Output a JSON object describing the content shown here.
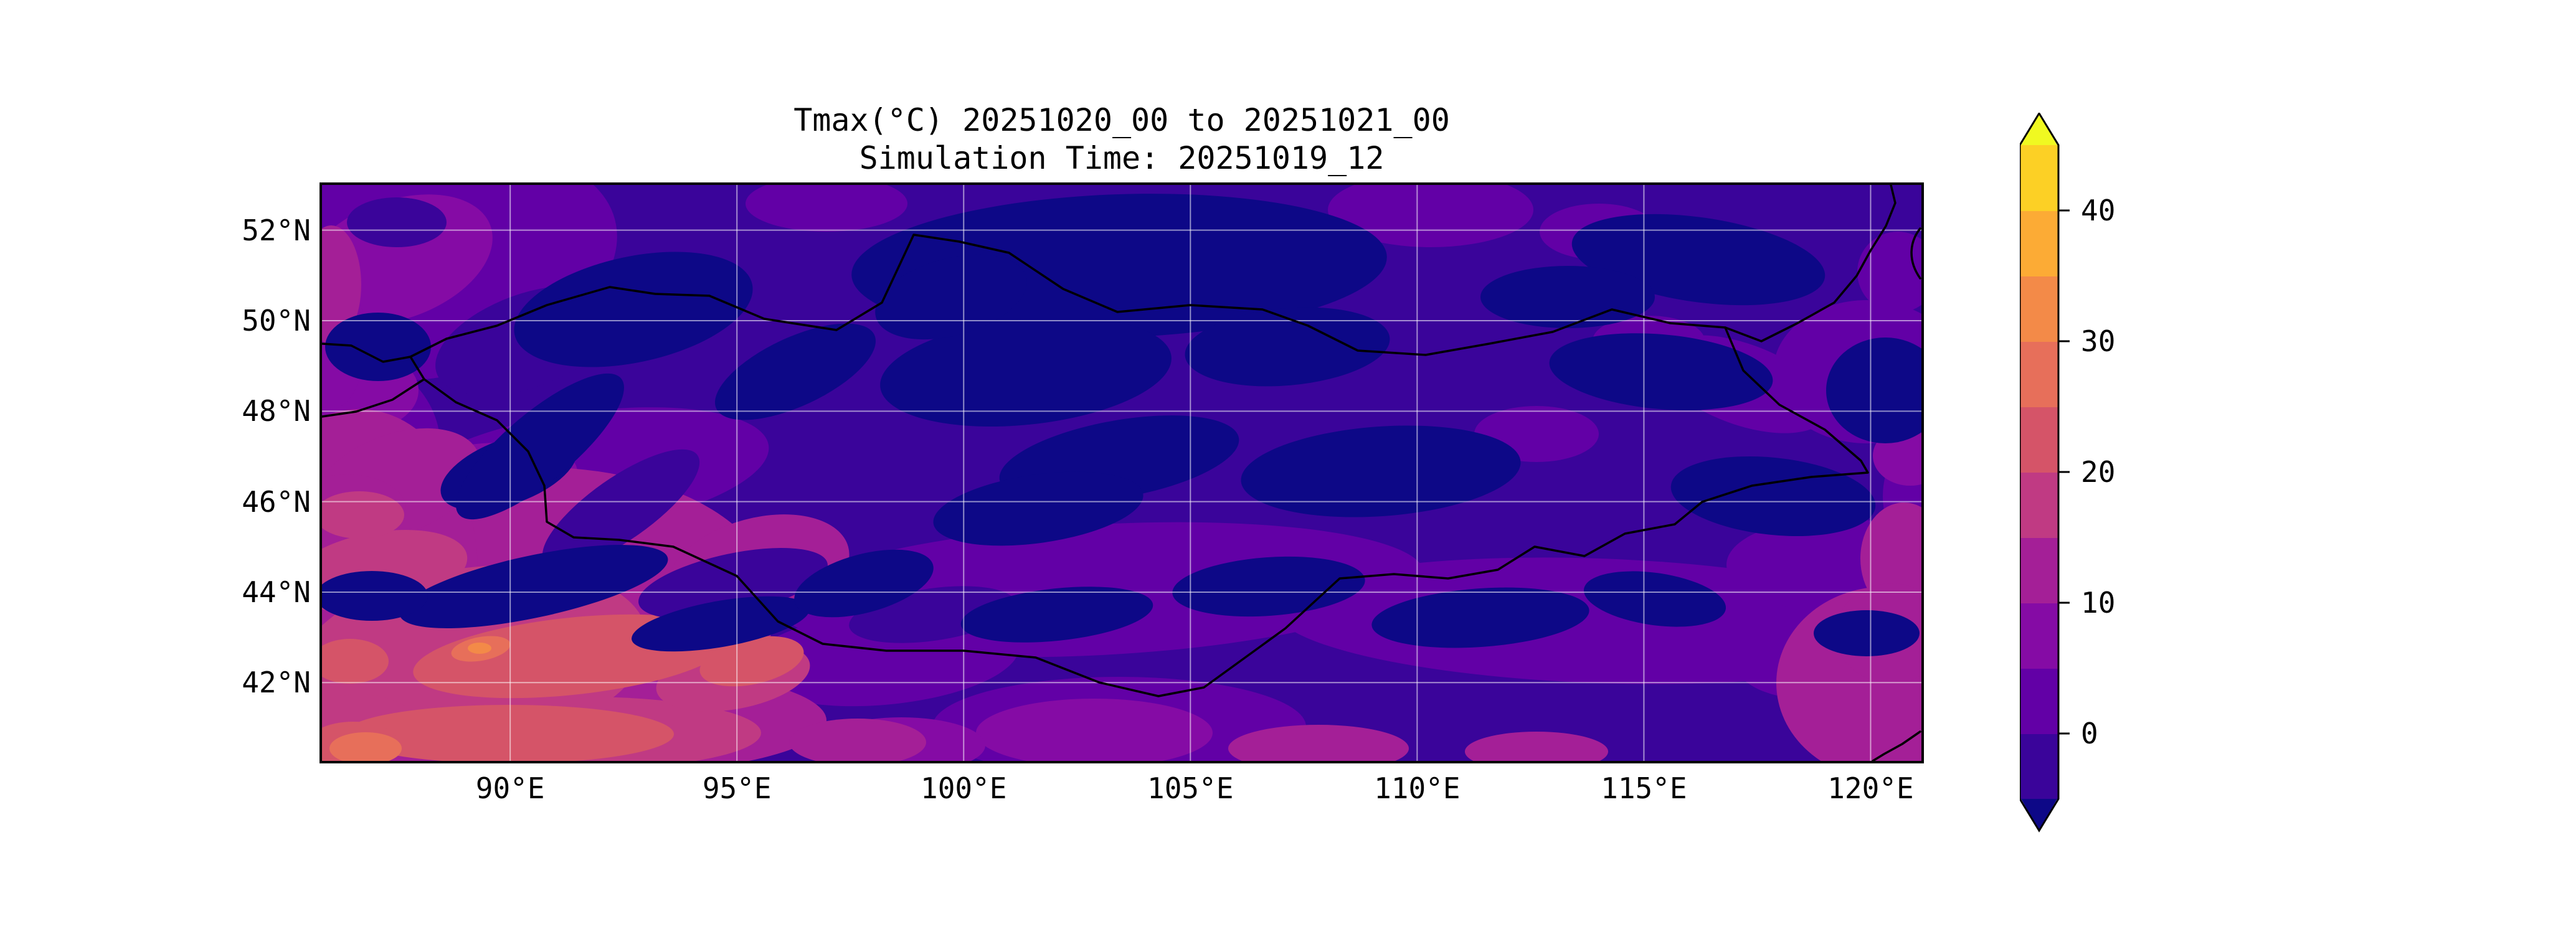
{
  "figure": {
    "background": "#ffffff",
    "frame_color": "#000000"
  },
  "chart_data": {
    "type": "heatmap",
    "subtype": "filled-contour temperature forecast map",
    "title": "Tmax(°C) 20251020_00 to 20251021_00",
    "subtitle": "Simulation Time: 20251019_12",
    "variable": "daily maximum temperature",
    "unit": "°C",
    "xlim": [
      85.85,
      121.12
    ],
    "ylim": [
      40.27,
      53.0
    ],
    "x_ticks": [
      {
        "value": 90,
        "label": "90°E"
      },
      {
        "value": 95,
        "label": "95°E"
      },
      {
        "value": 100,
        "label": "100°E"
      },
      {
        "value": 105,
        "label": "105°E"
      },
      {
        "value": 110,
        "label": "110°E"
      },
      {
        "value": 115,
        "label": "115°E"
      },
      {
        "value": 120,
        "label": "120°E"
      }
    ],
    "y_ticks": [
      {
        "value": 52,
        "label": "52°N"
      },
      {
        "value": 50,
        "label": "50°N"
      },
      {
        "value": 48,
        "label": "48°N"
      },
      {
        "value": 46,
        "label": "46°N"
      },
      {
        "value": 44,
        "label": "44°N"
      },
      {
        "value": 42,
        "label": "42°N"
      }
    ],
    "grid": true,
    "grid_color": "rgba(255,255,255,0.55)",
    "overlays": "black country boundary lines (Mongolia outline, Russia/China/Kazakhstan borders, NE China coastline segment)",
    "colorbar": {
      "orientation": "vertical",
      "position": "right",
      "colormap": "plasma",
      "extend": "both",
      "levels": [
        -5,
        0,
        5,
        10,
        15,
        20,
        25,
        30,
        35,
        40,
        45
      ],
      "bin_colors": [
        "#3a049a",
        "#6200a6",
        "#850ba5",
        "#a41f97",
        "#c03a83",
        "#d55468",
        "#e76f5a",
        "#f38a48",
        "#fcab35",
        "#fcd025"
      ],
      "under_color": "#0d0887",
      "over_color": "#f0f921",
      "tick_values": [
        0,
        10,
        20,
        30,
        40
      ],
      "tick_labels": [
        "0",
        "10",
        "20",
        "30",
        "40"
      ]
    },
    "field_regions": [
      {
        "area": "northern border zone / Siberia (49–53°N, 92–112°E)",
        "tmax_c": "-5 to 0 with pockets below -5"
      },
      {
        "area": "central and eastern Mongolia (44–49°N, 96–118°E)",
        "tmax_c": "-5 to 5"
      },
      {
        "area": "southern Gobi band (40.5–44°N, 96–118°E)",
        "tmax_c": "0 to 15"
      },
      {
        "area": "southwest corner / Dzungaria (86–96°E, 40.5–47°N)",
        "tmax_c": "10 to 30, small spots 30 to 35"
      },
      {
        "area": "northwest corner (86–93°E, 50–53°N)",
        "tmax_c": "0 to 10"
      },
      {
        "area": "southeast corner along right edge (118–121°E, 40.5–44°N)",
        "tmax_c": "5 to 15"
      }
    ]
  }
}
